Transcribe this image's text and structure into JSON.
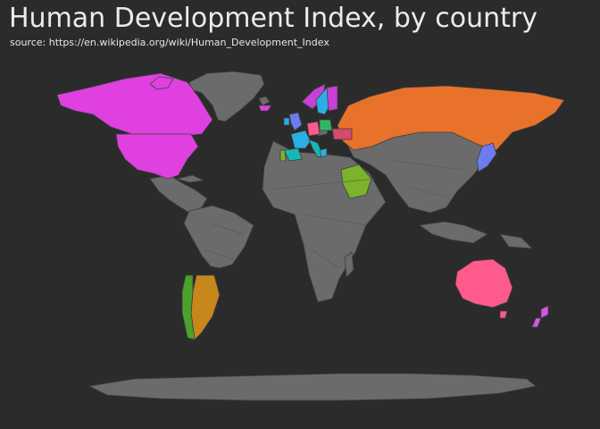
{
  "header": {
    "title": "Human Development Index, by country",
    "subtitle": "source: https://en.wikipedia.org/wiki/Human_Development_Index"
  },
  "map": {
    "projection": "world map",
    "background_color": "#2b2b2b",
    "default_land_color": "#6b6b6b",
    "highlighted": [
      {
        "region": "United States",
        "color": "#e040e0"
      },
      {
        "region": "Canada",
        "color": "#e040e0"
      },
      {
        "region": "Russia",
        "color": "#e8722a"
      },
      {
        "region": "Australia",
        "color": "#ff5a8c"
      },
      {
        "region": "New Zealand",
        "color": "#d655e6"
      },
      {
        "region": "Argentina",
        "color": "#c8871a"
      },
      {
        "region": "Chile",
        "color": "#4aa22a"
      },
      {
        "region": "Saudi Arabia",
        "color": "#7cb32a"
      },
      {
        "region": "Japan",
        "color": "#6b7bf0"
      },
      {
        "region": "United Kingdom",
        "color": "#6b7bf0"
      },
      {
        "region": "Ireland",
        "color": "#2aaee6"
      },
      {
        "region": "France",
        "color": "#2aaee6"
      },
      {
        "region": "Spain",
        "color": "#14b8b0"
      },
      {
        "region": "Portugal",
        "color": "#7cb32a"
      },
      {
        "region": "Italy",
        "color": "#14b8b0"
      },
      {
        "region": "Germany",
        "color": "#ff5a8c"
      },
      {
        "region": "Poland",
        "color": "#2fb860"
      },
      {
        "region": "Norway",
        "color": "#c840d6"
      },
      {
        "region": "Sweden",
        "color": "#2aaee6"
      },
      {
        "region": "Finland",
        "color": "#c840d6"
      },
      {
        "region": "Greece",
        "color": "#2aaee6"
      },
      {
        "region": "Ukraine",
        "color": "#d64a6a"
      }
    ]
  }
}
